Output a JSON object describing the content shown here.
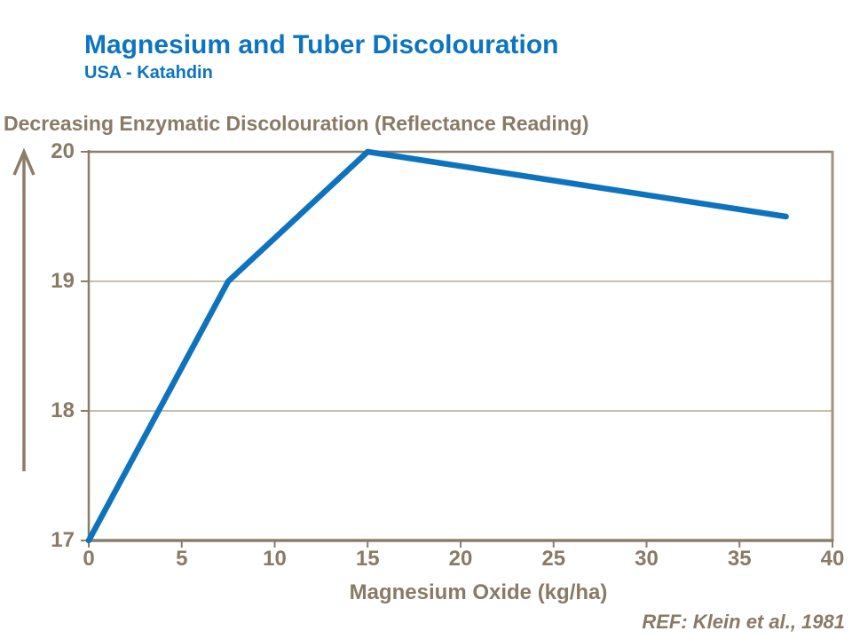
{
  "header": {
    "title": "Magnesium and Tuber Discolouration",
    "subtitle": "USA - Katahdin"
  },
  "footer": {
    "ref": "REF: Klein et al., 1981"
  },
  "colors": {
    "accent_blue": "#0e73bf",
    "taupe_text": "#8a7a65",
    "axis_dark": "#8d7d68",
    "grid_light": "#b5a996",
    "frame_light": "#a2937d"
  },
  "icons": {
    "up_arrow": "increasing-direction-arrow"
  },
  "chart_data": {
    "type": "line",
    "title": "Magnesium and Tuber Discolouration",
    "subtitle": "USA - Katahdin",
    "x": [
      0,
      7.5,
      15,
      37.5
    ],
    "y": [
      17,
      19,
      20,
      19.5
    ],
    "xlabel": "Magnesium Oxide (kg/ha)",
    "ylabel": "Decreasing Enzymatic Discolouration (Reflectance Reading)",
    "xlim": [
      0,
      40
    ],
    "ylim": [
      17,
      20
    ],
    "x_ticks": [
      0,
      5,
      10,
      15,
      20,
      25,
      30,
      35,
      40
    ],
    "y_ticks": [
      17,
      18,
      19,
      20
    ],
    "grid": "horizontal gridlines at 18, 19; top frame at 20; right frame at x=40",
    "legend": "none",
    "annotation": "REF: Klein et al., 1981"
  }
}
